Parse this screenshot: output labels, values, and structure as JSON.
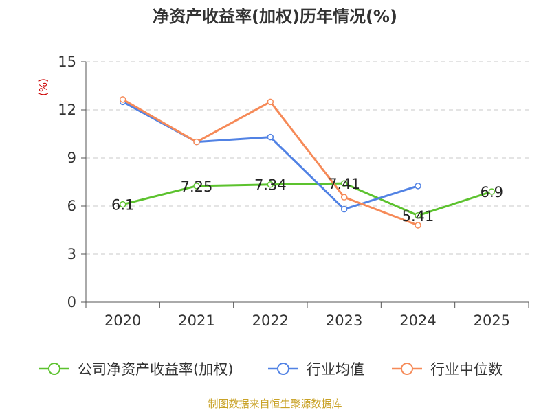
{
  "chart_data": {
    "type": "line",
    "title": "净资产收益率(加权)历年情况(%)",
    "ylabel": "(%)",
    "xlabel": "",
    "categories": [
      "2020",
      "2021",
      "2022",
      "2023",
      "2024",
      "2025"
    ],
    "ylim": [
      0,
      15
    ],
    "yticks": [
      0,
      3,
      6,
      9,
      12,
      15
    ],
    "grid": true,
    "legend_position": "bottom",
    "series": [
      {
        "name": "公司净资产收益率(加权)",
        "color": "#5cc22e",
        "values": [
          6.1,
          7.25,
          7.34,
          7.41,
          5.41,
          6.9
        ],
        "labels": [
          "6.1",
          "7.25",
          "7.34",
          "7.41",
          "5.41",
          "6.9"
        ]
      },
      {
        "name": "行业均值",
        "color": "#5182e4",
        "values": [
          12.5,
          10.0,
          10.3,
          5.8,
          7.25,
          null
        ]
      },
      {
        "name": "行业中位数",
        "color": "#f68a58",
        "values": [
          12.65,
          10.0,
          12.5,
          6.55,
          4.8,
          null
        ]
      }
    ]
  },
  "source": "制图数据来自恒生聚源数据库"
}
